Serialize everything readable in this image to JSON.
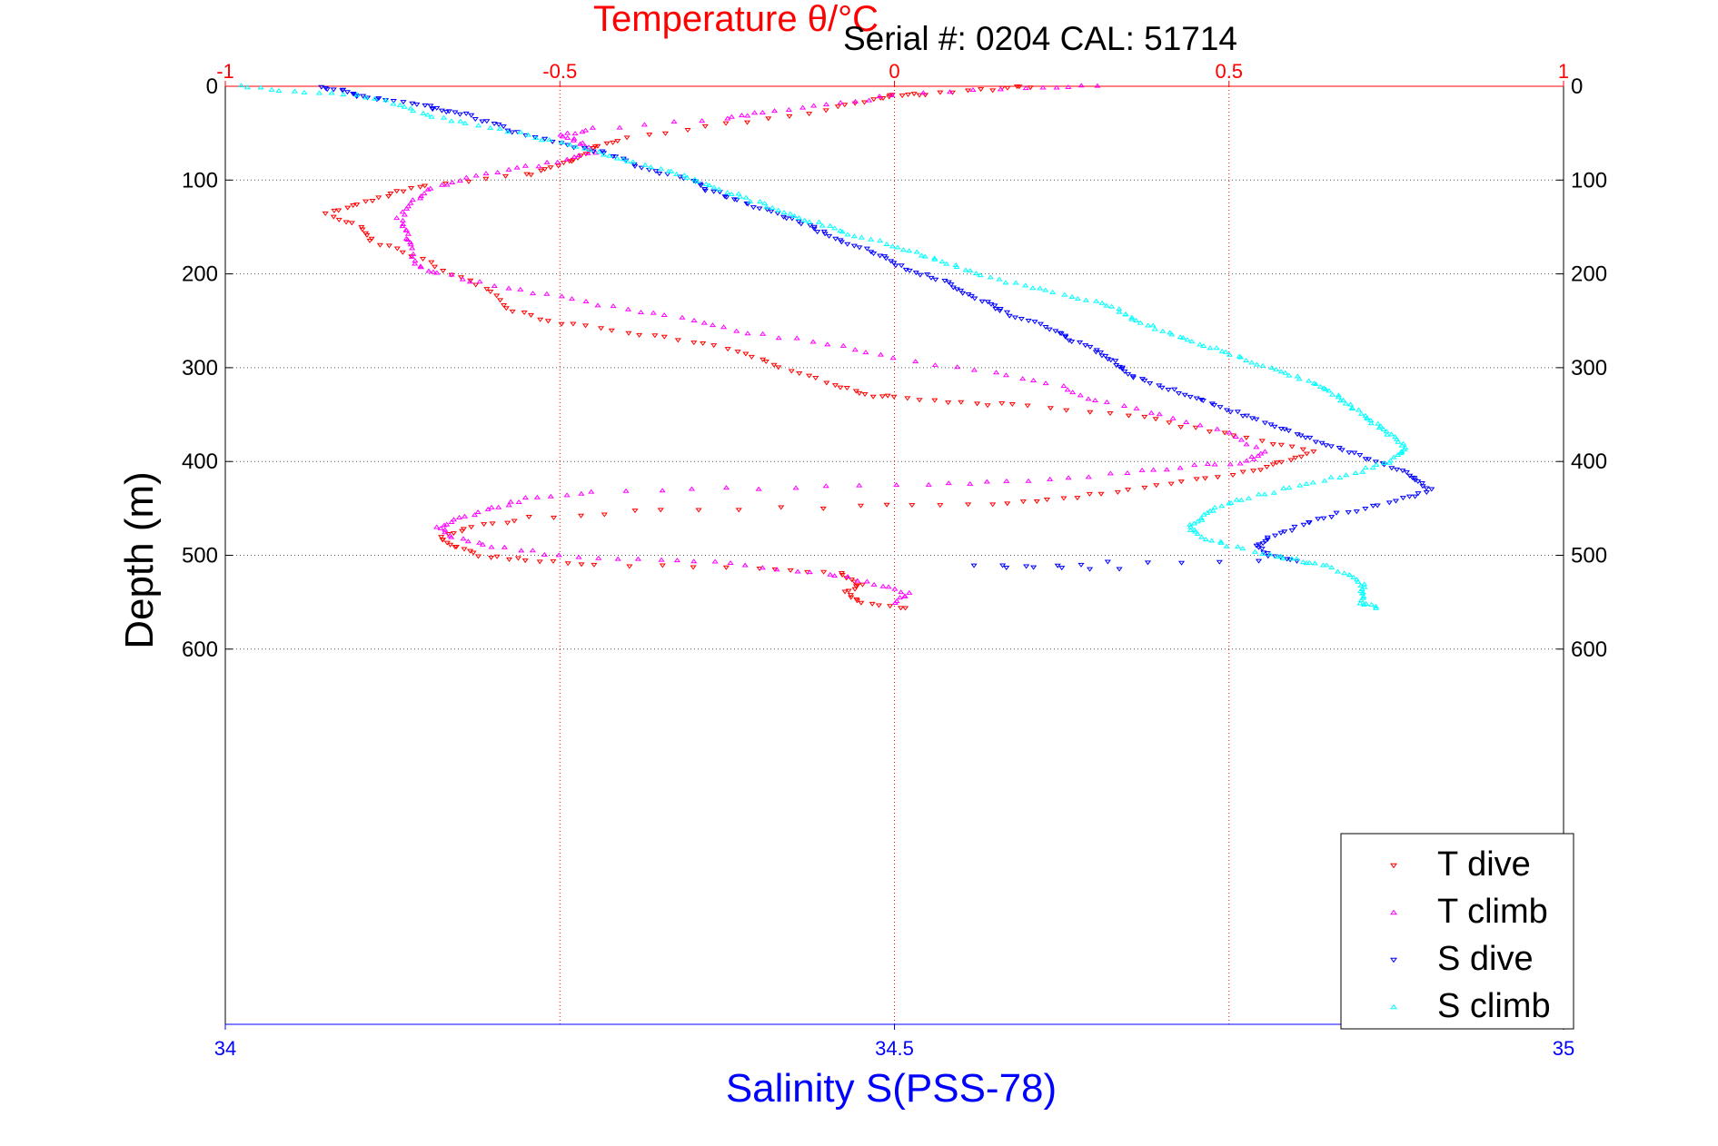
{
  "chart_data": {
    "type": "scatter",
    "title": "Temperature θ/°C",
    "subtitle": "Serial #: 0204  CAL: 51714",
    "xlabel_top": "Temperature θ/°C",
    "xlabel_bottom": "Salinity S(PSS-78)",
    "ylabel": "Depth (m)",
    "y_axis": {
      "range": [
        0,
        1000
      ],
      "inverted": true,
      "ticks": [
        "0",
        "100",
        "200",
        "300",
        "400",
        "500",
        "600"
      ]
    },
    "top_axis": {
      "range": [
        -1,
        1
      ],
      "ticks": [
        "-1",
        "-0.5",
        "0",
        "0.5",
        "1"
      ],
      "color": "#ff0000"
    },
    "bottom_axis": {
      "range": [
        34,
        35
      ],
      "ticks": [
        "34",
        "34.5",
        "35"
      ],
      "color": "#0000ff"
    },
    "grid": {
      "horizontal": true,
      "vertical_top": true
    },
    "legend": {
      "placement": "bottom-right",
      "entries": [
        "T dive",
        "T climb",
        "S dive",
        "S climb"
      ]
    },
    "series": [
      {
        "name": "T dive",
        "axis": "top",
        "color": "#ff0000",
        "marker": "triangle-down",
        "points": [
          [
            0.2,
            0
          ],
          [
            0.15,
            3
          ],
          [
            0.05,
            8
          ],
          [
            0.0,
            10
          ],
          [
            -0.03,
            14
          ],
          [
            -0.1,
            25
          ],
          [
            -0.25,
            40
          ],
          [
            -0.4,
            55
          ],
          [
            -0.45,
            65
          ],
          [
            -0.47,
            75
          ],
          [
            -0.5,
            85
          ],
          [
            -0.55,
            95
          ],
          [
            -0.7,
            105
          ],
          [
            -0.75,
            115
          ],
          [
            -0.8,
            125
          ],
          [
            -0.85,
            135
          ],
          [
            -0.8,
            150
          ],
          [
            -0.78,
            165
          ],
          [
            -0.72,
            180
          ],
          [
            -0.66,
            200
          ],
          [
            -0.6,
            220
          ],
          [
            -0.57,
            240
          ],
          [
            -0.5,
            252
          ],
          [
            -0.4,
            262
          ],
          [
            -0.3,
            272
          ],
          [
            -0.22,
            285
          ],
          [
            -0.17,
            300
          ],
          [
            -0.1,
            315
          ],
          [
            -0.05,
            328
          ],
          [
            0.0,
            332
          ],
          [
            0.1,
            338
          ],
          [
            0.2,
            340
          ],
          [
            0.35,
            350
          ],
          [
            0.45,
            365
          ],
          [
            0.55,
            378
          ],
          [
            0.63,
            390
          ],
          [
            0.58,
            400
          ],
          [
            0.54,
            410
          ],
          [
            0.45,
            420
          ],
          [
            0.35,
            430
          ],
          [
            0.25,
            440
          ],
          [
            0.15,
            445
          ],
          [
            -0.05,
            448
          ],
          [
            -0.35,
            452
          ],
          [
            -0.55,
            460
          ],
          [
            -0.63,
            470
          ],
          [
            -0.68,
            480
          ],
          [
            -0.66,
            490
          ],
          [
            -0.62,
            500
          ],
          [
            -0.55,
            505
          ],
          [
            -0.45,
            510
          ],
          [
            -0.2,
            515
          ],
          [
            -0.08,
            520
          ],
          [
            -0.05,
            530
          ],
          [
            -0.07,
            540
          ],
          [
            -0.05,
            550
          ],
          [
            0.02,
            556
          ]
        ]
      },
      {
        "name": "T climb",
        "axis": "top",
        "color": "#ff00ff",
        "marker": "triangle-up",
        "points": [
          [
            0.3,
            0
          ],
          [
            0.2,
            2
          ],
          [
            0.0,
            10
          ],
          [
            -0.1,
            20
          ],
          [
            -0.2,
            28
          ],
          [
            -0.25,
            35
          ],
          [
            -0.45,
            45
          ],
          [
            -0.5,
            52
          ],
          [
            -0.47,
            60
          ],
          [
            -0.45,
            70
          ],
          [
            -0.5,
            80
          ],
          [
            -0.58,
            90
          ],
          [
            -0.65,
            100
          ],
          [
            -0.7,
            110
          ],
          [
            -0.72,
            125
          ],
          [
            -0.74,
            140
          ],
          [
            -0.73,
            155
          ],
          [
            -0.72,
            170
          ],
          [
            -0.72,
            190
          ],
          [
            -0.68,
            200
          ],
          [
            -0.6,
            212
          ],
          [
            -0.5,
            225
          ],
          [
            -0.4,
            238
          ],
          [
            -0.3,
            250
          ],
          [
            -0.22,
            262
          ],
          [
            -0.1,
            275
          ],
          [
            0.0,
            290
          ],
          [
            0.15,
            305
          ],
          [
            0.25,
            320
          ],
          [
            0.3,
            335
          ],
          [
            0.4,
            350
          ],
          [
            0.5,
            370
          ],
          [
            0.55,
            390
          ],
          [
            0.53,
            400
          ],
          [
            0.45,
            405
          ],
          [
            0.35,
            412
          ],
          [
            0.2,
            420
          ],
          [
            0.05,
            425
          ],
          [
            -0.2,
            428
          ],
          [
            -0.45,
            432
          ],
          [
            -0.55,
            440
          ],
          [
            -0.6,
            450
          ],
          [
            -0.65,
            460
          ],
          [
            -0.68,
            470
          ],
          [
            -0.66,
            480
          ],
          [
            -0.6,
            490
          ],
          [
            -0.5,
            500
          ],
          [
            -0.35,
            505
          ],
          [
            -0.22,
            510
          ],
          [
            -0.1,
            520
          ],
          [
            -0.03,
            530
          ],
          [
            0.02,
            540
          ],
          [
            0.0,
            550
          ]
        ]
      },
      {
        "name": "S dive",
        "axis": "bottom",
        "color": "#0000ff",
        "marker": "triangle-down",
        "points": [
          [
            34.07,
            0
          ],
          [
            34.09,
            5
          ],
          [
            34.1,
            10
          ],
          [
            34.12,
            15
          ],
          [
            34.15,
            20
          ],
          [
            34.16,
            25
          ],
          [
            34.18,
            30
          ],
          [
            34.2,
            40
          ],
          [
            34.22,
            50
          ],
          [
            34.25,
            60
          ],
          [
            34.28,
            70
          ],
          [
            34.3,
            80
          ],
          [
            34.32,
            90
          ],
          [
            34.35,
            100
          ],
          [
            34.36,
            110
          ],
          [
            34.38,
            120
          ],
          [
            34.4,
            130
          ],
          [
            34.42,
            140
          ],
          [
            34.44,
            150
          ],
          [
            34.45,
            160
          ],
          [
            34.47,
            170
          ],
          [
            34.49,
            180
          ],
          [
            34.5,
            190
          ],
          [
            34.52,
            200
          ],
          [
            34.54,
            210
          ],
          [
            34.55,
            220
          ],
          [
            34.57,
            230
          ],
          [
            34.58,
            240
          ],
          [
            34.6,
            250
          ],
          [
            34.62,
            260
          ],
          [
            34.63,
            270
          ],
          [
            34.65,
            280
          ],
          [
            34.66,
            290
          ],
          [
            34.67,
            300
          ],
          [
            34.68,
            310
          ],
          [
            34.7,
            320
          ],
          [
            34.72,
            330
          ],
          [
            34.74,
            340
          ],
          [
            34.76,
            350
          ],
          [
            34.78,
            360
          ],
          [
            34.8,
            370
          ],
          [
            34.82,
            380
          ],
          [
            34.84,
            390
          ],
          [
            34.86,
            400
          ],
          [
            34.88,
            410
          ],
          [
            34.89,
            420
          ],
          [
            34.9,
            430
          ],
          [
            34.88,
            440
          ],
          [
            34.85,
            450
          ],
          [
            34.82,
            460
          ],
          [
            34.8,
            470
          ],
          [
            34.78,
            480
          ],
          [
            34.77,
            490
          ],
          [
            34.78,
            500
          ],
          [
            34.8,
            505
          ],
          [
            34.66,
            508
          ],
          [
            34.56,
            512
          ],
          [
            34.67,
            515
          ]
        ]
      },
      {
        "name": "S climb",
        "axis": "bottom",
        "color": "#00ffff",
        "marker": "triangle-up",
        "points": [
          [
            34.01,
            0
          ],
          [
            34.05,
            5
          ],
          [
            34.1,
            10
          ],
          [
            34.13,
            20
          ],
          [
            34.15,
            30
          ],
          [
            34.18,
            40
          ],
          [
            34.22,
            50
          ],
          [
            34.25,
            60
          ],
          [
            34.28,
            70
          ],
          [
            34.3,
            80
          ],
          [
            34.33,
            90
          ],
          [
            34.35,
            100
          ],
          [
            34.37,
            110
          ],
          [
            34.39,
            120
          ],
          [
            34.41,
            130
          ],
          [
            34.43,
            140
          ],
          [
            34.45,
            150
          ],
          [
            34.47,
            160
          ],
          [
            34.5,
            170
          ],
          [
            34.52,
            180
          ],
          [
            34.54,
            190
          ],
          [
            34.56,
            200
          ],
          [
            34.59,
            210
          ],
          [
            34.62,
            220
          ],
          [
            34.65,
            230
          ],
          [
            34.67,
            240
          ],
          [
            34.68,
            250
          ],
          [
            34.7,
            260
          ],
          [
            34.72,
            270
          ],
          [
            34.74,
            280
          ],
          [
            34.76,
            290
          ],
          [
            34.78,
            300
          ],
          [
            34.8,
            310
          ],
          [
            34.82,
            320
          ],
          [
            34.83,
            330
          ],
          [
            34.84,
            340
          ],
          [
            34.85,
            350
          ],
          [
            34.86,
            360
          ],
          [
            34.87,
            370
          ],
          [
            34.88,
            380
          ],
          [
            34.88,
            390
          ],
          [
            34.87,
            400
          ],
          [
            34.85,
            410
          ],
          [
            34.82,
            420
          ],
          [
            34.79,
            430
          ],
          [
            34.76,
            440
          ],
          [
            34.74,
            450
          ],
          [
            34.73,
            460
          ],
          [
            34.72,
            470
          ],
          [
            34.73,
            480
          ],
          [
            34.75,
            490
          ],
          [
            34.78,
            500
          ],
          [
            34.8,
            505
          ],
          [
            34.82,
            510
          ],
          [
            34.84,
            520
          ],
          [
            34.85,
            530
          ],
          [
            34.85,
            540
          ],
          [
            34.85,
            550
          ],
          [
            34.86,
            556
          ]
        ]
      }
    ]
  }
}
